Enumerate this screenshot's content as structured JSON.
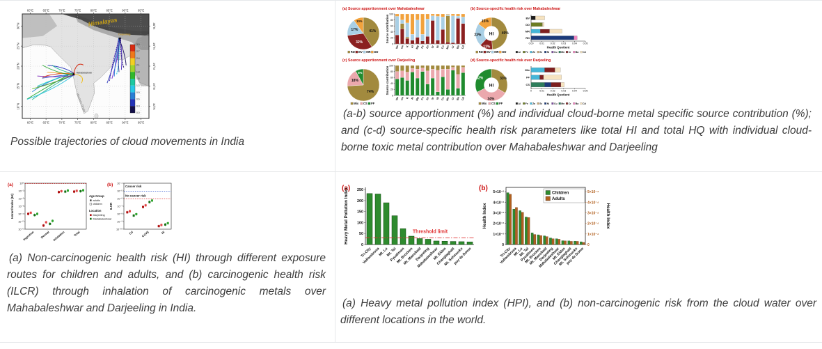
{
  "page": {
    "background": "#ffffff",
    "grid_border_color": "#e6e8ea",
    "panel_title_color": "#cc1111"
  },
  "captions": {
    "map": "Possible trajectories of cloud movements in India",
    "source_apportionment": "(a-b) source apportionment (%) and individual cloud-borne metal specific source contribution (%); and (c-d) source-specific health risk parameters like total HI and total HQ with individual cloud-borne toxic metal contribution over Mahabaleshwar and Darjeeling",
    "health_risk": "(a) Non-carcinogenic health risk (HI) through different exposure routes for children and adults, and (b) carcinogenic health risk (ILCR) through inhalation of carcinogenic metals over Mahabaleshwar and Darjeeling in India.",
    "hpi": "(a) Heavy metal pollution index (HPI), and (b) non-carcinogenic risk from the cloud water over different locations in the world."
  },
  "map_figure": {
    "lon_ticks": [
      "60°E",
      "65°E",
      "70°E",
      "75°E",
      "80°E",
      "85°E",
      "90°E",
      "95°E"
    ],
    "lon_values": [
      60,
      65,
      70,
      75,
      80,
      85,
      90,
      95
    ],
    "lat_ticks": [
      "30°N",
      "25°N",
      "20°N",
      "15°N",
      "10°N"
    ],
    "lat_values": [
      30,
      25,
      20,
      15,
      10
    ],
    "himalayas_label": "Himalayas",
    "western_ghats_label": "Western Ghats",
    "sites": [
      {
        "name": "Mahabaleshwar",
        "lon": 73.7,
        "lat": 18.0
      },
      {
        "name": "Darjeeling",
        "lon": 88.3,
        "lat": 27.0
      }
    ],
    "colorbar": {
      "labels": [
        "3.0",
        "2.7",
        "2.4",
        "2.1",
        "1.8",
        "1.5",
        "1.2",
        "0.9",
        "0.6",
        "0.3",
        "0.0"
      ],
      "colors": [
        "#d82a10",
        "#f07818",
        "#f2d020",
        "#9fd42a",
        "#2fb82a",
        "#1ec8a0",
        "#28c8e8",
        "#2a7fd4",
        "#2433b8",
        "#14104a"
      ]
    },
    "trajectory_colors_west": [
      "#1fa52a",
      "#18b68e",
      "#22c0dd",
      "#2a7fd4",
      "#2433b8",
      "#5fc02a",
      "#12d0c0",
      "#2a50c8",
      "#7a22b8",
      "#d42a10",
      "#f0a020",
      "#1fa52a",
      "#2433b8",
      "#18b68e"
    ],
    "trajectory_colors_east": [
      "#2433b8",
      "#3a18a8",
      "#6a1fd0",
      "#2a7fd4",
      "#22c0dd",
      "#1b2a90",
      "#4a28c0",
      "#241070",
      "#120a60"
    ]
  },
  "chart_data": [
    {
      "id": "pie_mah",
      "type": "pie",
      "title": "(a) Source apportionment over Mahabaleshwar",
      "labels": [
        "RD",
        "BV",
        "MR",
        "DD"
      ],
      "values": [
        41,
        32,
        17,
        10
      ],
      "colors": [
        "#a28a3e",
        "#8b2020",
        "#a9cfe5",
        "#f2a23c"
      ]
    },
    {
      "id": "stack_mah",
      "type": "bar",
      "stacked": true,
      "ylabel": "Source contribution",
      "ylim": [
        0,
        100
      ],
      "yticks": [
        0,
        20,
        40,
        60,
        80,
        100
      ],
      "categories": [
        "Na",
        "Ca",
        "K",
        "Al",
        "Mg",
        "Fe",
        "Zn",
        "Sr",
        "Ni",
        "Cu",
        "Mn",
        "Cr",
        "Ba",
        "Cd"
      ],
      "series_order": [
        "BV",
        "RD",
        "MR",
        "DD"
      ],
      "series_colors": [
        "#8b2020",
        "#a28a3e",
        "#a9cfe5",
        "#f2a23c"
      ],
      "values": [
        [
          30,
          0,
          62,
          8
        ],
        [
          50,
          18,
          12,
          20
        ],
        [
          18,
          5,
          47,
          30
        ],
        [
          12,
          0,
          20,
          68
        ],
        [
          22,
          0,
          58,
          20
        ],
        [
          10,
          0,
          22,
          68
        ],
        [
          25,
          0,
          58,
          17
        ],
        [
          78,
          0,
          16,
          6
        ],
        [
          12,
          0,
          80,
          8
        ],
        [
          48,
          0,
          42,
          10
        ],
        [
          6,
          88,
          4,
          2
        ],
        [
          4,
          0,
          90,
          6
        ],
        [
          85,
          0,
          8,
          7
        ],
        [
          68,
          0,
          22,
          10
        ]
      ]
    },
    {
      "id": "donut_mah",
      "type": "pie",
      "donut": true,
      "center_label": "HI",
      "title": "(b) Source-specific health risk over Mahabaleshwar",
      "labels": [
        "RD",
        "BV",
        "MR",
        "DD"
      ],
      "values": [
        49,
        13,
        23,
        15
      ],
      "colors": [
        "#a28a3e",
        "#8b2020",
        "#a9cfe5",
        "#f2a23c"
      ]
    },
    {
      "id": "hq_mah",
      "type": "bar",
      "horizontal": true,
      "stacked": true,
      "xlabel": "Health Quotient",
      "xlim": [
        0,
        0.05
      ],
      "xticks": [
        "0.00",
        "0.01",
        "0.02",
        "0.03",
        "0.04",
        "0.05"
      ],
      "categories": [
        "BV",
        "DD",
        "MR",
        "RD"
      ],
      "rows": {
        "BV": [
          [
            "Al",
            0.004
          ],
          [
            "Cd",
            0.0085
          ]
        ],
        "DD": [
          [
            "Fe",
            0.0105
          ],
          [
            "Cd",
            0.0015
          ]
        ],
        "MR": [
          [
            "Zn",
            0.0085
          ],
          [
            "Cr",
            0.0085
          ],
          [
            "Cd",
            0.0115
          ]
        ],
        "RD": [
          [
            "Ni",
            0.0395
          ],
          [
            "Ba",
            0.003
          ]
        ]
      },
      "legend": [
        "Al",
        "Fe",
        "Zn",
        "Sr",
        "Ni",
        "Cu",
        "Mn",
        "Cr",
        "Ba",
        "Cd"
      ]
    },
    {
      "id": "pie_dar",
      "type": "pie",
      "title": "(c) Source apportionment over Darjeeling",
      "labels": [
        "Mix",
        "CS",
        "FF"
      ],
      "values": [
        74,
        18,
        8
      ],
      "colors": [
        "#a28a3e",
        "#eba8ad",
        "#1f8b2e"
      ]
    },
    {
      "id": "stack_dar",
      "type": "bar",
      "stacked": true,
      "ylabel": "Source contribution",
      "ylim": [
        0,
        100
      ],
      "yticks": [
        0,
        20,
        40,
        60,
        80,
        100
      ],
      "categories": [
        "Na",
        "Ca",
        "K",
        "Al",
        "Mg",
        "Fe",
        "Zn",
        "Sr",
        "Ni",
        "Cu",
        "Mn",
        "Cr",
        "Ba",
        "Cd"
      ],
      "series_order": [
        "FF",
        "CS",
        "Mix"
      ],
      "series_colors": [
        "#1f8b2e",
        "#eba8ad",
        "#a28a3e"
      ],
      "values": [
        [
          55,
          25,
          20
        ],
        [
          60,
          22,
          18
        ],
        [
          50,
          28,
          22
        ],
        [
          78,
          12,
          10
        ],
        [
          58,
          30,
          12
        ],
        [
          80,
          12,
          8
        ],
        [
          38,
          44,
          18
        ],
        [
          58,
          30,
          12
        ],
        [
          12,
          72,
          16
        ],
        [
          62,
          26,
          12
        ],
        [
          20,
          68,
          12
        ],
        [
          84,
          10,
          6
        ],
        [
          24,
          46,
          30
        ],
        [
          76,
          18,
          6
        ]
      ]
    },
    {
      "id": "donut_dar",
      "type": "pie",
      "donut": true,
      "center_label": "HI",
      "title": "(d) Source-specific health risk over Darjeeling",
      "labels": [
        "Mix",
        "CS",
        "FF"
      ],
      "values": [
        33,
        34,
        32
      ],
      "colors": [
        "#a28a3e",
        "#eba8ad",
        "#1f8b2e"
      ]
    },
    {
      "id": "hq_dar",
      "type": "bar",
      "horizontal": true,
      "stacked": true,
      "xlabel": "Health Quotient",
      "xlim": [
        0,
        0.05
      ],
      "xticks": [
        "0",
        "0.01",
        "0.02",
        "0.03",
        "0.04",
        "0.05"
      ],
      "categories": [
        "Mix",
        "FF",
        "CS"
      ],
      "rows": {
        "Mix": [
          [
            "Zn",
            0.0125
          ],
          [
            "Cr",
            0.0095
          ],
          [
            "Cd",
            0.005
          ]
        ],
        "FF": [
          [
            "Zn",
            0.008
          ],
          [
            "Cr",
            0.0035
          ],
          [
            "Cd",
            0.0165
          ]
        ],
        "CS": [
          [
            "Mn",
            0.0125
          ],
          [
            "Ni",
            0.006
          ],
          [
            "Cr",
            0.009
          ],
          [
            "Cd",
            0.003
          ]
        ]
      },
      "legend": [
        "Al",
        "Fe",
        "Zn",
        "Sr",
        "Ni",
        "Cu",
        "Mn",
        "Cr",
        "Ba",
        "Cd"
      ]
    },
    {
      "id": "hi_scatter",
      "type": "scatter",
      "panel_label": "(a)",
      "ylabel": "Hazard Index (HI)",
      "yticks": [
        "10⁰",
        "10⁻¹",
        "10⁻²",
        "10⁻³",
        "10⁻⁴",
        "10⁻⁵",
        "10⁻⁶"
      ],
      "ytop_exp": 0,
      "decades": 6,
      "categories": [
        "Ingestion",
        "Dermal",
        "Inhalation",
        "Total"
      ],
      "threshold_lines": [
        {
          "value_exp": 0,
          "color": "#e03030"
        }
      ],
      "series": [
        {
          "name": "Darjeeling adults",
          "color": "#b01010",
          "open": false,
          "values": [
            0.0001,
            3e-06,
            0.07,
            0.08
          ]
        },
        {
          "name": "Darjeeling children",
          "color": "#e04545",
          "open": false,
          "values": [
            0.00014,
            8e-06,
            0.09,
            0.1
          ]
        },
        {
          "name": "Mahabaleshwar adults",
          "color": "#156f15",
          "open": false,
          "values": [
            7e-05,
            5e-06,
            0.08,
            0.09
          ]
        },
        {
          "name": "Mahabaleshwar children",
          "color": "#2fa52f",
          "open": false,
          "values": [
            0.0001,
            1.2e-05,
            0.11,
            0.12
          ]
        }
      ],
      "legend": {
        "age_title": "Age Group",
        "age_items": [
          "adults",
          "children"
        ],
        "loc_title": "Location",
        "loc_items": [
          {
            "label": "Darjeeling",
            "color": "#b01010"
          },
          {
            "label": "Mahabaleshwar",
            "color": "#156f15"
          }
        ]
      }
    },
    {
      "id": "ilcr_scatter",
      "type": "scatter",
      "panel_label": "(b)",
      "ylabel": "ILCR",
      "yticks": [
        "10⁻⁴",
        "10⁻⁵",
        "10⁻⁶",
        "10⁻⁷",
        "10⁻⁸",
        "10⁻⁹",
        "10⁻¹⁰"
      ],
      "ytop_exp": -4,
      "decades": 6,
      "categories": [
        "Cd",
        "Cr(VI)",
        "Ni"
      ],
      "annotations": [
        {
          "text": "Cancer risk",
          "exp": -4.55
        },
        {
          "text": "No cancer risk",
          "exp": -5.75
        }
      ],
      "threshold_lines": [
        {
          "value_exp": -5,
          "color": "#3a5fd0"
        },
        {
          "value_exp": -6,
          "color": "#e03030"
        }
      ],
      "series": [
        {
          "name": "Darjeeling adults",
          "color": "#b01010",
          "values": [
            1.6e-08,
            8e-08,
            2.5e-10
          ]
        },
        {
          "name": "Darjeeling children",
          "color": "#e04545",
          "values": [
            2.2e-08,
            1.3e-07,
            3.5e-10
          ]
        },
        {
          "name": "Mahabaleshwar adults",
          "color": "#156f15",
          "values": [
            6e-09,
            3.5e-07,
            4e-10
          ]
        },
        {
          "name": "Mahabaleshwar children",
          "color": "#2fa52f",
          "values": [
            9e-09,
            5.5e-07,
            6e-10
          ]
        }
      ]
    },
    {
      "id": "hpi_bars",
      "type": "bar",
      "panel_label": "(a)",
      "ylabel": "Heavy Metal Pollution Index",
      "yticks": [
        0,
        50,
        100,
        150,
        200,
        250
      ],
      "ylim": [
        0,
        260
      ],
      "categories": [
        "Tri-City",
        "Vallombrosa",
        "Mt. Lu",
        "Mt. Tai",
        "Pyualimen",
        "Mt. Brocken",
        "Mt. Mansfield",
        "Darjeeling",
        "Mahabaleshwar",
        "Mt. Elden",
        "Changlaghatt",
        "Mt. Schmucke",
        "puy de Dome"
      ],
      "values": [
        232,
        230,
        190,
        131,
        72,
        38,
        27,
        24,
        16,
        15,
        14,
        13,
        12
      ],
      "bar_color": "#2e8b2e",
      "threshold": {
        "value": 30,
        "label": "Threshold limit",
        "color": "#e03030"
      }
    },
    {
      "id": "health_index_bars",
      "type": "bar",
      "grouped": true,
      "panel_label": "(b)",
      "ylabel_left": "Health Index",
      "ylabel_right": "Health Index",
      "yticks_left": [
        "0",
        "1×10⁻²",
        "2×10⁻²",
        "3×10⁻²",
        "4×10⁻²",
        "5×10⁻²"
      ],
      "yticks_right": [
        "0",
        "1×10⁻⁴",
        "2×10⁻⁴",
        "3×10⁻⁴",
        "4×10⁻⁴",
        "5×10⁻⁴"
      ],
      "right_axis_color": "#b2601f",
      "categories": [
        "Tri-City",
        "Vallombrosa",
        "Mt. Lu",
        "Mt. Tai",
        "Pyualimen",
        "Mt. Brocken",
        "Mt. Mansfield",
        "Darjeeling",
        "Mahabaleshwar",
        "Mt. Elden",
        "Changlaghatt",
        "Mt. Schmucke",
        "puy de Dome"
      ],
      "series": [
        {
          "name": "Children",
          "color": "#2e8b2e",
          "scale": 100,
          "values": [
            0.049,
            0.0335,
            0.032,
            0.026,
            0.011,
            0.0092,
            0.0082,
            0.0062,
            0.0055,
            0.0036,
            0.0034,
            0.0032,
            0.0026
          ]
        },
        {
          "name": "Adults",
          "color": "#b2601f",
          "scale": 10000,
          "values": [
            0.000475,
            0.00035,
            0.000305,
            0.000255,
            9.5e-05,
            8.5e-05,
            7.5e-05,
            5.5e-05,
            5e-05,
            3.4e-05,
            3e-05,
            3e-05,
            2e-05
          ]
        }
      ]
    }
  ]
}
